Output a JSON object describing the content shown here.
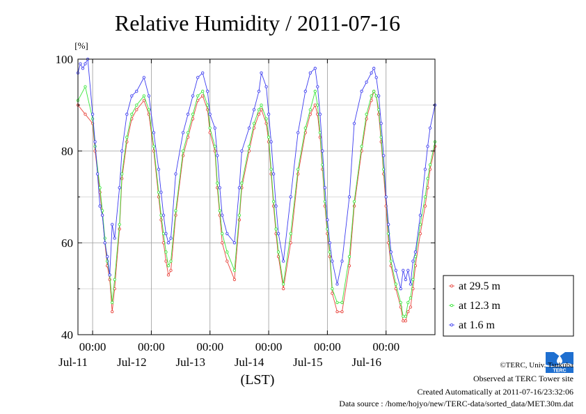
{
  "chart_data": {
    "type": "line",
    "title": "Relative Humidity / 2011-07-16",
    "ylabel": "[%]",
    "xlabel": "(LST)",
    "ylim": [
      40,
      100
    ],
    "y_ticks": [
      40,
      60,
      80,
      100
    ],
    "y_minor_ticks": [
      50,
      70,
      90
    ],
    "xlim": [
      0,
      146
    ],
    "x_unit": "hours since 2011-07-10 18:00 LST",
    "x_ticks": [
      {
        "x": 6,
        "time": "00:00",
        "date": "Jul-11"
      },
      {
        "x": 30,
        "time": "00:00",
        "date": "Jul-12"
      },
      {
        "x": 54,
        "time": "00:00",
        "date": "Jul-13"
      },
      {
        "x": 78,
        "time": "00:00",
        "date": "Jul-14"
      },
      {
        "x": 102,
        "time": "00:00",
        "date": "Jul-15"
      },
      {
        "x": 126,
        "time": "00:00",
        "date": "Jul-16"
      }
    ],
    "grid": true,
    "legend_position": "bottom-right, outside the plot",
    "series": [
      {
        "name": "at 29.5 m",
        "color": "#e8423a",
        "x": [
          0,
          3,
          6,
          7,
          9,
          10,
          11,
          12,
          13,
          14,
          15,
          17,
          18,
          20,
          22,
          24,
          27,
          29,
          31,
          33,
          34,
          35,
          36,
          37,
          38,
          40,
          43,
          45,
          47,
          49,
          51,
          53,
          54,
          56,
          57,
          58,
          59,
          61,
          64,
          66,
          67,
          70,
          72,
          74,
          75,
          77,
          78,
          79,
          80,
          81,
          82,
          84,
          87,
          90,
          93,
          95,
          97,
          98,
          99,
          100,
          101,
          102,
          103,
          104,
          106,
          108,
          111,
          113,
          116,
          118,
          120,
          121,
          122,
          123,
          124,
          125,
          126,
          127,
          128,
          130,
          132,
          133,
          134,
          135,
          136,
          137,
          138,
          140,
          142,
          143,
          144,
          146
        ],
        "values": [
          90,
          88,
          86,
          80,
          71,
          66,
          60,
          55,
          52,
          45,
          50,
          63,
          74,
          82,
          87,
          89,
          91,
          88,
          80,
          70,
          65,
          60,
          56,
          53,
          54,
          66,
          79,
          83,
          87,
          91,
          92,
          89,
          84,
          80,
          72,
          66,
          60,
          56,
          52,
          65,
          72,
          80,
          85,
          88,
          89,
          86,
          82,
          75,
          68,
          62,
          57,
          50,
          60,
          75,
          84,
          88,
          90,
          88,
          83,
          76,
          68,
          62,
          57,
          49,
          45,
          45,
          55,
          68,
          80,
          87,
          91,
          93,
          92,
          88,
          82,
          75,
          68,
          60,
          55,
          50,
          46,
          43,
          43,
          45,
          46,
          50,
          55,
          62,
          68,
          72,
          76,
          81
        ]
      },
      {
        "name": "at 12.3 m",
        "color": "#39e639",
        "x": [
          0,
          3,
          6,
          7,
          9,
          10,
          11,
          12,
          13,
          14,
          15,
          17,
          18,
          20,
          22,
          24,
          27,
          29,
          31,
          33,
          34,
          35,
          36,
          37,
          38,
          40,
          43,
          45,
          47,
          49,
          51,
          53,
          54,
          56,
          57,
          58,
          59,
          61,
          64,
          66,
          67,
          70,
          72,
          74,
          75,
          77,
          78,
          79,
          80,
          81,
          82,
          84,
          87,
          90,
          93,
          95,
          97,
          98,
          99,
          100,
          101,
          102,
          103,
          104,
          106,
          108,
          111,
          113,
          116,
          118,
          120,
          121,
          122,
          123,
          124,
          125,
          126,
          127,
          128,
          130,
          132,
          133,
          134,
          135,
          136,
          137,
          138,
          140,
          142,
          143,
          144,
          146
        ],
        "values": [
          91,
          94,
          87,
          81,
          72,
          67,
          61,
          56,
          53,
          47,
          52,
          64,
          75,
          83,
          88,
          90,
          92,
          89,
          81,
          71,
          66,
          62,
          58,
          55,
          56,
          67,
          80,
          84,
          88,
          92,
          93,
          90,
          85,
          81,
          73,
          67,
          62,
          58,
          54,
          66,
          73,
          81,
          86,
          89,
          90,
          87,
          83,
          76,
          69,
          63,
          58,
          51,
          62,
          76,
          85,
          89,
          93,
          90,
          84,
          77,
          69,
          63,
          58,
          50,
          47,
          47,
          57,
          69,
          81,
          88,
          92,
          93,
          92,
          89,
          83,
          76,
          70,
          62,
          56,
          51,
          47,
          44,
          44,
          47,
          48,
          52,
          57,
          64,
          70,
          74,
          77,
          82
        ]
      },
      {
        "name": "at 1.6 m",
        "color": "#3b3bf0",
        "x": [
          0,
          1,
          2,
          3,
          4,
          6,
          7,
          8,
          9,
          10,
          11,
          12,
          13,
          14,
          15,
          17,
          18,
          20,
          22,
          24,
          27,
          29,
          31,
          33,
          34,
          35,
          36,
          37,
          38,
          40,
          43,
          45,
          47,
          49,
          51,
          53,
          54,
          56,
          57,
          58,
          59,
          61,
          64,
          66,
          67,
          70,
          72,
          74,
          75,
          77,
          78,
          79,
          80,
          81,
          82,
          84,
          87,
          90,
          93,
          95,
          97,
          98,
          99,
          100,
          101,
          102,
          103,
          104,
          106,
          108,
          111,
          113,
          116,
          118,
          120,
          121,
          122,
          123,
          124,
          125,
          126,
          127,
          128,
          130,
          132,
          133,
          134,
          135,
          136,
          137,
          138,
          140,
          142,
          143,
          144,
          146
        ],
        "values": [
          97,
          99,
          98,
          99,
          100,
          88,
          82,
          75,
          68,
          66,
          60,
          57,
          53,
          64,
          61,
          72,
          80,
          88,
          92,
          93,
          96,
          92,
          84,
          76,
          71,
          66,
          62,
          60,
          61,
          75,
          84,
          88,
          92,
          96,
          97,
          93,
          88,
          85,
          79,
          72,
          66,
          62,
          60,
          72,
          80,
          85,
          89,
          93,
          97,
          94,
          88,
          82,
          75,
          68,
          62,
          56,
          70,
          84,
          93,
          97,
          98,
          94,
          88,
          80,
          72,
          65,
          60,
          56,
          51,
          56,
          70,
          86,
          93,
          95,
          97,
          98,
          96,
          92,
          86,
          79,
          70,
          64,
          58,
          54,
          50,
          54,
          52,
          54,
          51,
          56,
          58,
          66,
          76,
          81,
          85,
          90
        ]
      }
    ]
  },
  "footer": {
    "credit": "©TERC, Univ. Tsukuba",
    "observed": "Observed at TERC Tower site",
    "created": "Created Automatically at 2011-07-16/23:32:06",
    "source": "Data source : /home/hojyo/new/TERC-data/sorted_data/MET.30m.dat"
  },
  "logo": {
    "text": "TERC",
    "color": "#1e6fd0"
  }
}
